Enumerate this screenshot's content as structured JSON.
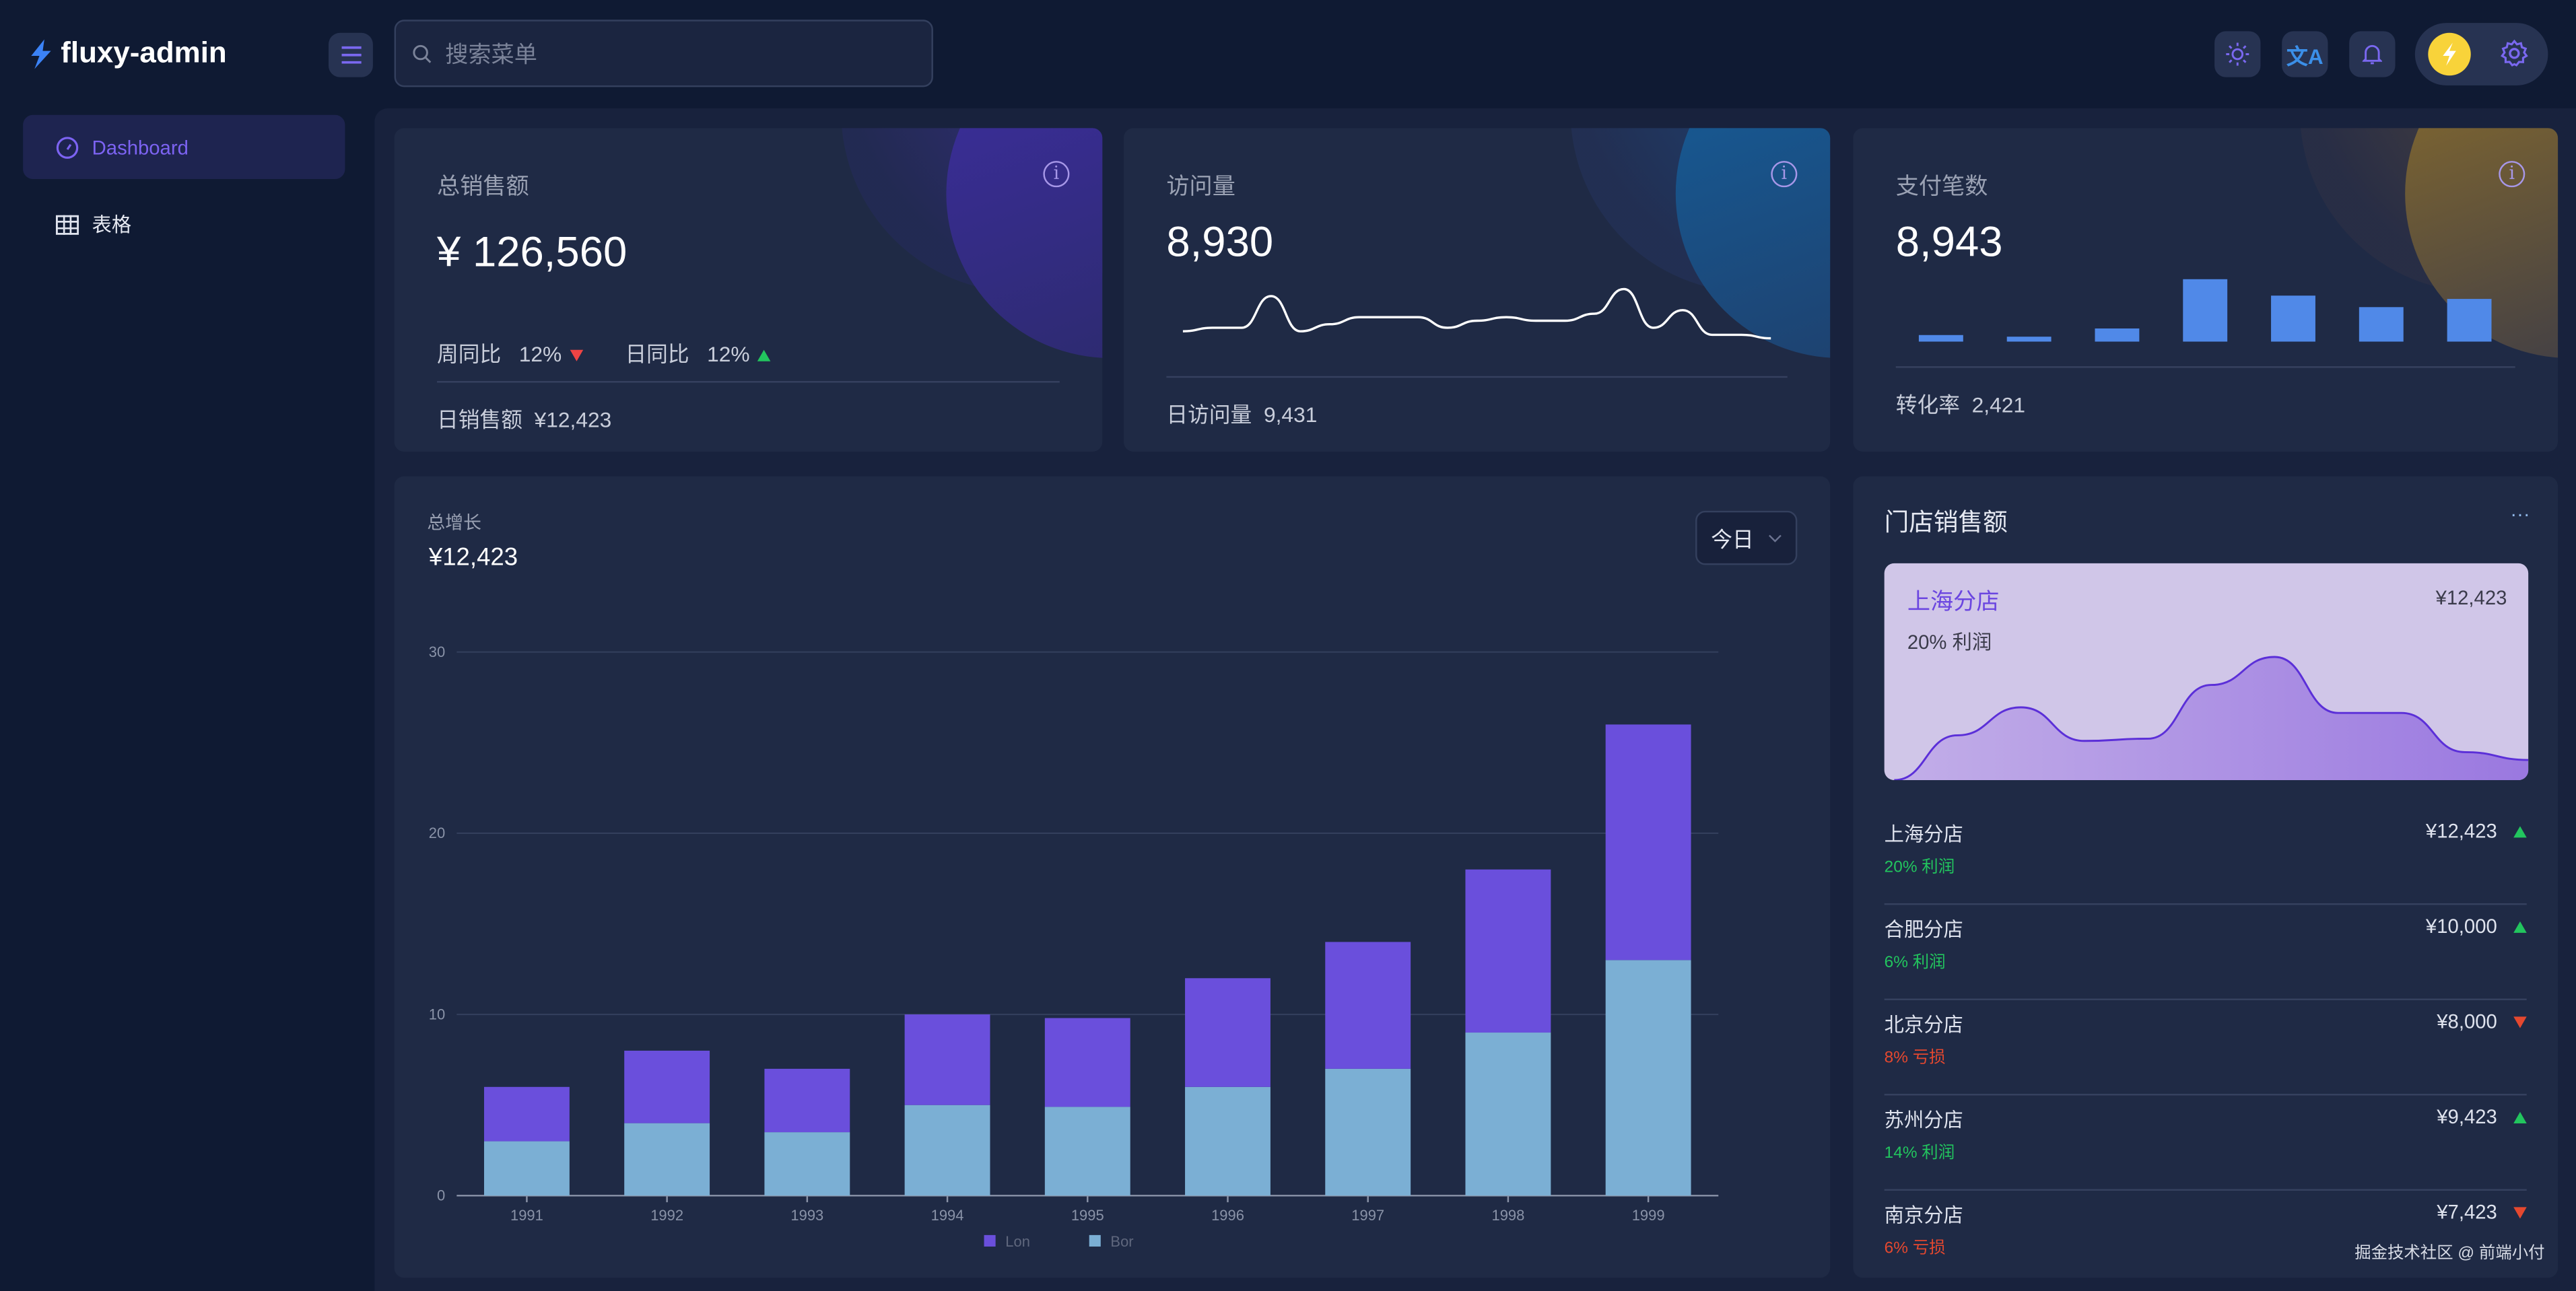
{
  "app": {
    "title": "fluxy-admin"
  },
  "header": {
    "search_placeholder": "搜索菜单",
    "icons": [
      "menu-icon",
      "sun-icon",
      "translate-icon",
      "bell-icon",
      "lightning-icon",
      "gear-icon"
    ],
    "accent": "#6b5ce7"
  },
  "sidebar": {
    "items": [
      {
        "label": "Dashboard",
        "icon": "dashboard-icon",
        "active": true
      },
      {
        "label": "表格",
        "icon": "table-icon",
        "active": false
      }
    ]
  },
  "cards": [
    {
      "title": "总销售额",
      "value": "¥ 126,560",
      "week_label": "周同比",
      "week_value": "12%",
      "week_trend": "down",
      "day_label": "日同比",
      "day_value": "12%",
      "day_trend": "up",
      "footer_label": "日销售额",
      "footer_value": "¥12,423"
    },
    {
      "title": "访问量",
      "value": "8,930",
      "sparkline": [
        2,
        3,
        3,
        12,
        2,
        4,
        6,
        6,
        6,
        3,
        5,
        6,
        5,
        5,
        7,
        14,
        3,
        8,
        1,
        1,
        0
      ],
      "footer_label": "日访问量",
      "footer_value": "9,431"
    },
    {
      "title": "支付笔数",
      "value": "8,943",
      "bars": [
        4,
        3,
        8,
        38,
        28,
        21,
        26
      ],
      "footer_label": "转化率",
      "footer_value": "2,421"
    }
  ],
  "growth": {
    "title": "总增长",
    "value": "¥12,423",
    "period": "今日"
  },
  "chart_data": {
    "type": "bar",
    "stacked": true,
    "categories": [
      "1991",
      "1992",
      "1993",
      "1994",
      "1995",
      "1996",
      "1997",
      "1998",
      "1999"
    ],
    "series": [
      {
        "name": "Lon",
        "color": "#6a4fdc",
        "values": [
          3,
          4,
          3.5,
          5,
          4.9,
          6,
          7,
          9,
          13
        ]
      },
      {
        "name": "Bor",
        "color": "#7bafd4",
        "values": [
          3,
          4,
          3.5,
          5,
          4.9,
          6,
          7,
          9,
          13
        ]
      }
    ],
    "ylim": [
      0,
      30
    ],
    "yticks": [
      "0",
      "10",
      "20",
      "30"
    ],
    "grid": true,
    "legend": "bottom"
  },
  "stores": {
    "title": "门店销售额",
    "more": "···",
    "featured": {
      "name": "上海分店",
      "value": "¥12,423",
      "profit": "20% 利润",
      "trend": [
        0,
        4,
        6.5,
        3.5,
        3.7,
        8.5,
        11,
        6,
        6,
        2.5,
        1.8
      ]
    },
    "list": [
      {
        "name": "上海分店",
        "value": "¥12,423",
        "profit": "20% 利润",
        "trend": "up"
      },
      {
        "name": "合肥分店",
        "value": "¥10,000",
        "profit": "6% 利润",
        "trend": "up"
      },
      {
        "name": "北京分店",
        "value": "¥8,000",
        "profit": "8% 亏损",
        "trend": "down"
      },
      {
        "name": "苏州分店",
        "value": "¥9,423",
        "profit": "14% 利润",
        "trend": "up"
      },
      {
        "name": "南京分店",
        "value": "¥7,423",
        "profit": "6% 亏损",
        "trend": "down"
      }
    ]
  },
  "watermark": "掘金技术社区 @ 前端小付"
}
